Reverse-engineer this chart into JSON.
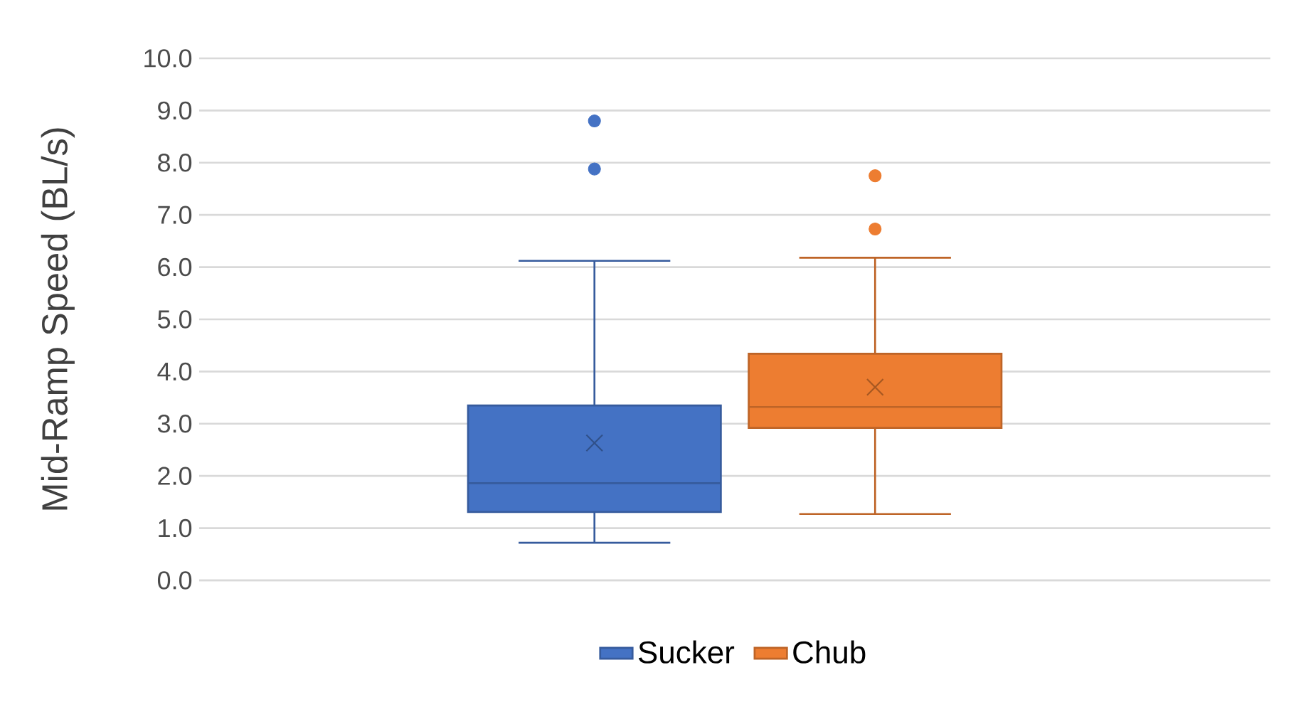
{
  "chart_data": {
    "type": "box",
    "ylabel": "Mid-Ramp Speed (BL/s)",
    "categories": [
      null
    ],
    "ylim": [
      0,
      10
    ],
    "yticks": [
      {
        "value": 0,
        "label": "0.0"
      },
      {
        "value": 1,
        "label": "1.0"
      },
      {
        "value": 2,
        "label": "2.0"
      },
      {
        "value": 3,
        "label": "3.0"
      },
      {
        "value": 4,
        "label": "4.0"
      },
      {
        "value": 5,
        "label": "5.0"
      },
      {
        "value": 6,
        "label": "6.0"
      },
      {
        "value": 7,
        "label": "7.0"
      },
      {
        "value": 8,
        "label": "8.0"
      },
      {
        "value": 9,
        "label": "9.0"
      },
      {
        "value": 10,
        "label": "10.0"
      }
    ],
    "grid": "y",
    "legend": "bottom",
    "series": [
      {
        "name": "Sucker",
        "color": "#4472c4",
        "boxes": [
          {
            "low": 0.72,
            "q1": 1.31,
            "median": 1.86,
            "q3": 3.35,
            "high": 6.12,
            "mean": 2.63,
            "outliers": [
              8.8,
              7.88
            ]
          }
        ]
      },
      {
        "name": "Chub",
        "color": "#ed7d31",
        "boxes": [
          {
            "low": 1.27,
            "q1": 2.92,
            "median": 3.32,
            "q3": 4.34,
            "high": 6.18,
            "mean": 3.7,
            "outliers": [
              7.75,
              6.73
            ]
          }
        ]
      }
    ]
  }
}
